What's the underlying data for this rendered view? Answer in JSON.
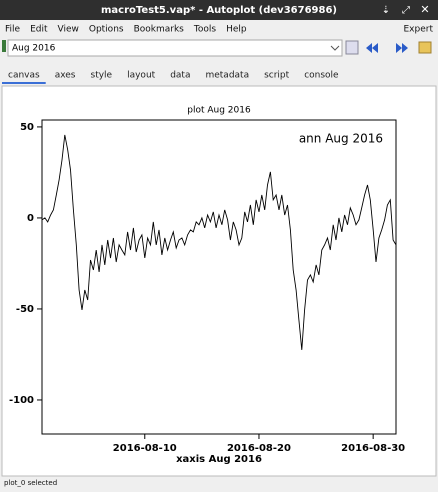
{
  "window": {
    "title": "macroTest5.vap* - Autoplot (dev3676986)"
  },
  "menu": [
    "File",
    "Edit",
    "View",
    "Options",
    "Bookmarks",
    "Tools",
    "Help"
  ],
  "mode": "Expert",
  "address": "Aug 2016",
  "tabs": [
    "canvas",
    "axes",
    "style",
    "layout",
    "data",
    "metadata",
    "script",
    "console"
  ],
  "status": "plot_0 selected",
  "chart_data": {
    "type": "line",
    "title": "plot Aug 2016",
    "annotation": "ann Aug 2016",
    "xlabel": "xaxis Aug 2016",
    "color": "#000000",
    "x": [
      1,
      1.25,
      1.5,
      1.75,
      2,
      2.25,
      2.5,
      2.75,
      3,
      3.25,
      3.5,
      3.75,
      4,
      4.25,
      4.5,
      4.75,
      5,
      5.25,
      5.5,
      5.75,
      6,
      6.25,
      6.5,
      6.75,
      7,
      7.25,
      7.5,
      7.75,
      8,
      8.25,
      8.5,
      8.75,
      9,
      9.25,
      9.5,
      9.75,
      10,
      10.25,
      10.5,
      10.75,
      11,
      11.25,
      11.5,
      11.75,
      12,
      12.25,
      12.5,
      12.75,
      13,
      13.25,
      13.5,
      13.75,
      14,
      14.25,
      14.5,
      14.75,
      15,
      15.25,
      15.5,
      15.75,
      16,
      16.25,
      16.5,
      16.75,
      17,
      17.25,
      17.5,
      17.75,
      18,
      18.25,
      18.5,
      18.75,
      19,
      19.25,
      19.5,
      19.75,
      20,
      20.25,
      20.5,
      20.75,
      21,
      21.25,
      21.5,
      21.75,
      22,
      22.25,
      22.5,
      22.75,
      23,
      23.25,
      23.5,
      23.75,
      24,
      24.25,
      24.5,
      24.75,
      25,
      25.25,
      25.5,
      25.75,
      26,
      26.25,
      26.5,
      26.75,
      27,
      27.25,
      27.5,
      27.75,
      28,
      28.25,
      28.5,
      28.75,
      29,
      29.25,
      29.5,
      29.75,
      30,
      30.25,
      30.5,
      30.75,
      31,
      31.25,
      31.5,
      31.75,
      32
    ],
    "values": [
      -1.1,
      0,
      -2.2,
      1.6,
      4.4,
      12.6,
      20.9,
      31.9,
      45.6,
      37.4,
      26.4,
      4.4,
      -14.8,
      -39.6,
      -50.5,
      -39.6,
      -45.1,
      -23.1,
      -28.6,
      -17.6,
      -29.7,
      -14.8,
      -25.8,
      -12.1,
      -22.0,
      -11.0,
      -24.2,
      -14.8,
      -17.6,
      -20.3,
      -7.7,
      -17.6,
      -5.5,
      -18.7,
      -12.1,
      -9.3,
      -22.0,
      -11.0,
      -14.8,
      -2.2,
      -14.8,
      -6.6,
      -20.3,
      -11.0,
      -17.6,
      -12.1,
      -7.7,
      -16.5,
      -12.1,
      -11.0,
      -14.8,
      -9.3,
      -6.6,
      -7.7,
      -2.2,
      -3.8,
      0,
      -5.5,
      1.6,
      -2.2,
      3.3,
      -5.5,
      1.6,
      -3.8,
      4.4,
      -1.1,
      -12.1,
      -2.2,
      -6.6,
      -14.8,
      -11.0,
      3.3,
      -2.2,
      7.1,
      -3.8,
      9.9,
      3.3,
      12.6,
      4.4,
      18.1,
      25.3,
      9.9,
      12.6,
      4.4,
      12.6,
      1.6,
      7.1,
      -6.6,
      -28.6,
      -39.6,
      -56.0,
      -72.5,
      -50.5,
      -34.1,
      -31.3,
      -35.2,
      -25.8,
      -31.3,
      -17.6,
      -14.8,
      -11.0,
      -17.6,
      -3.8,
      -12.1,
      0,
      -7.7,
      1.6,
      -3.8,
      5.5,
      1.6,
      -3.8,
      -1.1,
      5.5,
      12.6,
      18.1,
      9.9,
      -6.6,
      -24.2,
      -11.0,
      -6.6,
      -1.1,
      7.1,
      9.9,
      -12.1,
      -14.8
    ],
    "xlim": [
      1,
      32
    ],
    "xticks": [
      {
        "value": 10,
        "label": "2016-08-10"
      },
      {
        "value": 20,
        "label": "2016-08-20"
      },
      {
        "value": 30,
        "label": "2016-08-30"
      }
    ],
    "ylim": [
      -118.7,
      53.8
    ],
    "yticks": [
      50,
      0,
      -50,
      -100
    ]
  }
}
